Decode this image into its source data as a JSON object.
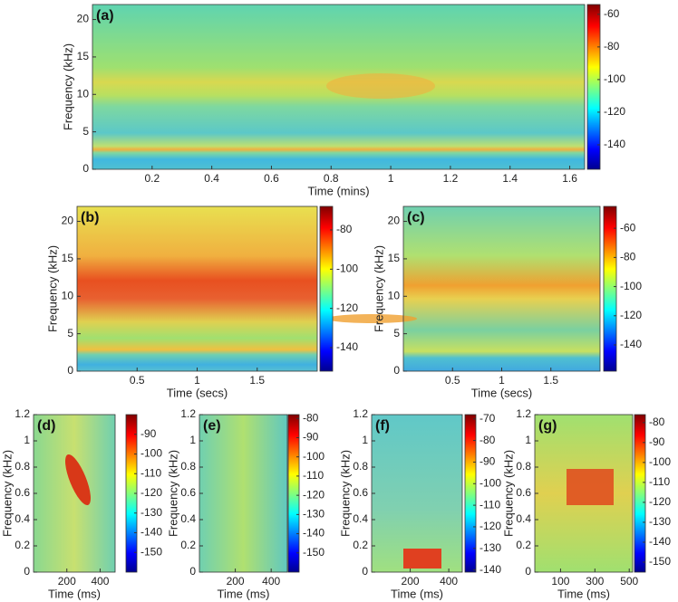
{
  "chart_data": [
    {
      "type": "heatmap",
      "label": "(a)",
      "xlabel": "Time (mins)",
      "ylabel": "Frequency (kHz)",
      "xlim": [
        0,
        1.65
      ],
      "xticks": [
        0.2,
        0.4,
        0.6,
        0.8,
        1,
        1.2,
        1.4,
        1.6
      ],
      "ylim": [
        0,
        22
      ],
      "yticks": [
        0,
        5,
        10,
        15,
        20
      ],
      "clim": [
        -155,
        -54
      ],
      "cticks": [
        -60,
        -80,
        -100,
        -120,
        -140
      ]
    },
    {
      "type": "heatmap",
      "label": "(b)",
      "xlabel": "Time (secs)",
      "ylabel": "Frequency (kHz)",
      "xlim": [
        0,
        2
      ],
      "xticks": [
        0.5,
        1,
        1.5
      ],
      "ylim": [
        0,
        22
      ],
      "yticks": [
        0,
        5,
        10,
        15,
        20
      ],
      "clim": [
        -152,
        -68
      ],
      "cticks": [
        -80,
        -100,
        -120,
        -140
      ]
    },
    {
      "type": "heatmap",
      "label": "(c)",
      "xlabel": "Time (secs)",
      "ylabel": "Frequency (kHz)",
      "xlim": [
        0,
        2
      ],
      "xticks": [
        0.5,
        1,
        1.5
      ],
      "ylim": [
        0,
        22
      ],
      "yticks": [
        0,
        5,
        10,
        15,
        20
      ],
      "clim": [
        -158,
        -45
      ],
      "cticks": [
        -60,
        -80,
        -100,
        -120,
        -140
      ]
    },
    {
      "type": "heatmap",
      "label": "(d)",
      "xlabel": "Time (ms)",
      "ylabel": "Frequency (kHz)",
      "xlim": [
        0,
        490
      ],
      "xticks": [
        200,
        400
      ],
      "ylim": [
        0,
        1.2
      ],
      "yticks": [
        0,
        0.2,
        0.4,
        0.6,
        0.8,
        1,
        1.2
      ],
      "clim": [
        -160,
        -80
      ],
      "cticks": [
        -90,
        -100,
        -110,
        -120,
        -130,
        -140,
        -150
      ]
    },
    {
      "type": "heatmap",
      "label": "(e)",
      "xlabel": "Time (ms)",
      "ylabel": "Frequency (kHz)",
      "xlim": [
        0,
        490
      ],
      "xticks": [
        200,
        400
      ],
      "ylim": [
        0,
        1.2
      ],
      "yticks": [
        0,
        0.2,
        0.4,
        0.6,
        0.8,
        1,
        1.2
      ],
      "clim": [
        -160,
        -78
      ],
      "cticks": [
        -80,
        -90,
        -100,
        -110,
        -120,
        -130,
        -140,
        -150
      ]
    },
    {
      "type": "heatmap",
      "label": "(f)",
      "xlabel": "Time (ms)",
      "ylabel": "Frequency (kHz)",
      "xlim": [
        0,
        470
      ],
      "xticks": [
        200,
        400
      ],
      "ylim": [
        0,
        1.2
      ],
      "yticks": [
        0,
        0.2,
        0.4,
        0.6,
        0.8,
        1,
        1.2
      ],
      "clim": [
        -141,
        -68
      ],
      "cticks": [
        -70,
        -80,
        -90,
        -100,
        -110,
        -120,
        -130,
        -140
      ]
    },
    {
      "type": "heatmap",
      "label": "(g)",
      "xlabel": "Time (ms)",
      "ylabel": "Frequency (kHz)",
      "xlim": [
        -50,
        520
      ],
      "xticks": [
        100,
        300,
        500
      ],
      "ylim": [
        0,
        1.2
      ],
      "yticks": [
        0,
        0.2,
        0.4,
        0.6,
        0.8,
        1,
        1.2
      ],
      "clim": [
        -155,
        -76
      ],
      "cticks": [
        -80,
        -90,
        -100,
        -110,
        -120,
        -130,
        -140,
        -150
      ]
    }
  ]
}
